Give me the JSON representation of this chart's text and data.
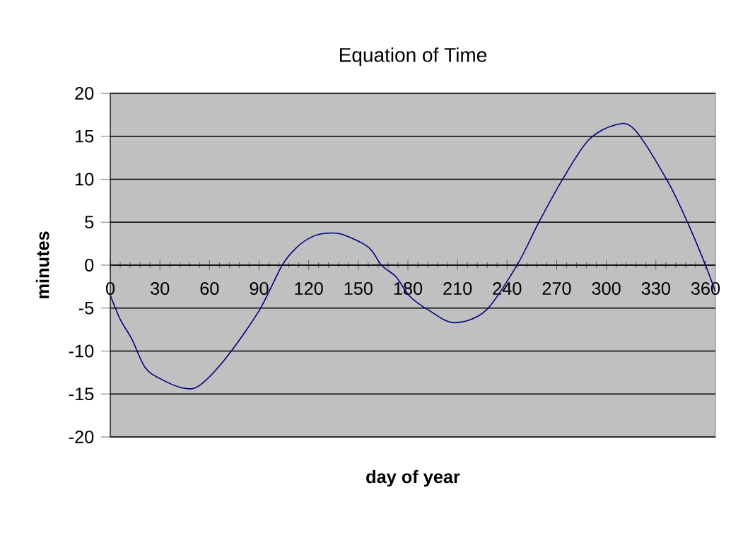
{
  "chart_data": {
    "type": "line",
    "title": "Equation of Time",
    "xlabel": "day of year",
    "ylabel": "minutes",
    "x": [
      0,
      6,
      13,
      21,
      30,
      44,
      54,
      70,
      90,
      104,
      113,
      122,
      130,
      140,
      156,
      164,
      173,
      181,
      193,
      208,
      227,
      246,
      259,
      273,
      289,
      305,
      317,
      337,
      350,
      360,
      366
    ],
    "series": [
      {
        "color": "#000080",
        "values": [
          -3.5,
          -6.3,
          -8.6,
          -11.9,
          -13.2,
          -14.3,
          -14,
          -10.8,
          -5.3,
          0,
          2.1,
          3.3,
          3.7,
          3.6,
          2.1,
          0,
          -1.4,
          -3.6,
          -5.3,
          -6.7,
          -5.3,
          0,
          4.9,
          9.8,
          14.5,
          16.3,
          15.8,
          9.8,
          4.6,
          0,
          -3.1
        ]
      }
    ],
    "xlim": [
      0,
      366
    ],
    "ylim": [
      -20,
      20
    ],
    "xticks": [
      0,
      30,
      60,
      90,
      120,
      150,
      180,
      210,
      240,
      270,
      300,
      330,
      360
    ],
    "yticks": [
      -20,
      -15,
      -10,
      -5,
      0,
      5,
      10,
      15,
      20
    ],
    "grid": "y",
    "marker": "none",
    "line_style": "solid"
  }
}
